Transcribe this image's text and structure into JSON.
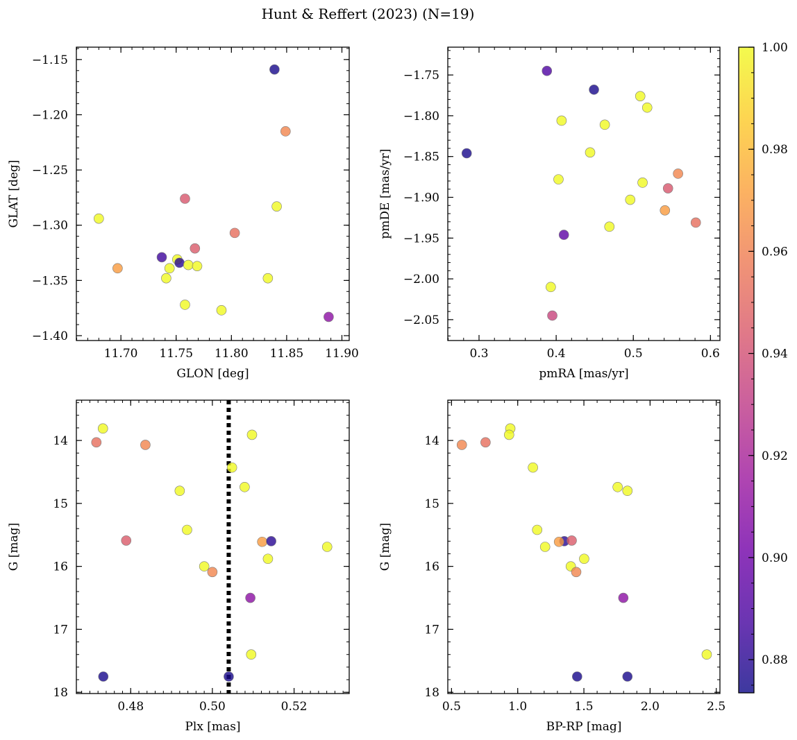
{
  "figure_title": "Hunt & Reffert (2023) (N=19)",
  "colorbar": {
    "range": [
      0.8735,
      1.0
    ],
    "ticks": [
      0.88,
      0.9,
      0.92,
      0.94,
      0.96,
      0.98,
      1.0
    ],
    "tick_labels": [
      "0.88",
      "0.90",
      "0.92",
      "0.94",
      "0.96",
      "0.98",
      "1.00"
    ],
    "colormap": "plasma",
    "colormap_stops": [
      "#0d0887",
      "#46039f",
      "#7201a8",
      "#9c179e",
      "#bd3786",
      "#d8576b",
      "#ed7953",
      "#fb9f3a",
      "#fdca26",
      "#f0f921"
    ]
  },
  "chart_data": [
    {
      "type": "scatter",
      "panel": "top-left",
      "xlabel": "GLON [deg]",
      "ylabel": "GLAT [deg]",
      "xlim": [
        11.6597,
        11.9066
      ],
      "ylim": [
        -1.4044,
        -1.1388
      ],
      "y_inverted": false,
      "xticks": [
        11.7,
        11.75,
        11.8,
        11.85,
        11.9
      ],
      "xtick_labels": [
        "11.70",
        "11.75",
        "11.80",
        "11.85",
        "11.90"
      ],
      "xminor": 0.01,
      "yticks": [
        -1.4,
        -1.35,
        -1.3,
        -1.25,
        -1.2,
        -1.15
      ],
      "ytick_labels": [
        "−1.40",
        "−1.35",
        "−1.30",
        "−1.25",
        "−1.20",
        "−1.15"
      ],
      "yminor": 0.01,
      "points": [
        {
          "x": 11.839,
          "y": -1.159,
          "c": 0.876
        },
        {
          "x": 11.849,
          "y": -1.215,
          "c": 0.962
        },
        {
          "x": 11.758,
          "y": -1.276,
          "c": 0.943
        },
        {
          "x": 11.841,
          "y": -1.283,
          "c": 1.0
        },
        {
          "x": 11.68,
          "y": -1.294,
          "c": 1.0
        },
        {
          "x": 11.803,
          "y": -1.307,
          "c": 0.953
        },
        {
          "x": 11.767,
          "y": -1.321,
          "c": 0.945
        },
        {
          "x": 11.737,
          "y": -1.329,
          "c": 0.885
        },
        {
          "x": 11.751,
          "y": -1.331,
          "c": 1.0
        },
        {
          "x": 11.753,
          "y": -1.334,
          "c": 0.88
        },
        {
          "x": 11.761,
          "y": -1.336,
          "c": 1.0
        },
        {
          "x": 11.769,
          "y": -1.337,
          "c": 1.0
        },
        {
          "x": 11.697,
          "y": -1.339,
          "c": 0.97
        },
        {
          "x": 11.744,
          "y": -1.339,
          "c": 1.0
        },
        {
          "x": 11.741,
          "y": -1.348,
          "c": 1.0
        },
        {
          "x": 11.833,
          "y": -1.348,
          "c": 1.0
        },
        {
          "x": 11.758,
          "y": -1.372,
          "c": 1.0
        },
        {
          "x": 11.791,
          "y": -1.377,
          "c": 1.0
        },
        {
          "x": 11.888,
          "y": -1.383,
          "c": 0.91
        }
      ]
    },
    {
      "type": "scatter",
      "panel": "top-right",
      "xlabel": "pmRA [mas/yr]",
      "ylabel": "pmDE [mas/yr]",
      "xlim": [
        0.2595,
        0.6123
      ],
      "ylim": [
        -2.0756,
        -1.7159
      ],
      "y_inverted": false,
      "xticks": [
        0.3,
        0.4,
        0.5,
        0.6
      ],
      "xtick_labels": [
        "0.3",
        "0.4",
        "0.5",
        "0.6"
      ],
      "xminor": 0.02,
      "yticks": [
        -2.05,
        -2.0,
        -1.95,
        -1.9,
        -1.85,
        -1.8,
        -1.75
      ],
      "ytick_labels": [
        "−2.05",
        "−2.00",
        "−1.95",
        "−1.90",
        "−1.85",
        "−1.80",
        "−1.75"
      ],
      "yminor": 0.01,
      "points": [
        {
          "x": 0.388,
          "y": -1.745,
          "c": 0.89
        },
        {
          "x": 0.449,
          "y": -1.768,
          "c": 0.876
        },
        {
          "x": 0.509,
          "y": -1.776,
          "c": 1.0
        },
        {
          "x": 0.518,
          "y": -1.79,
          "c": 1.0
        },
        {
          "x": 0.407,
          "y": -1.806,
          "c": 1.0
        },
        {
          "x": 0.463,
          "y": -1.811,
          "c": 1.0
        },
        {
          "x": 0.444,
          "y": -1.845,
          "c": 1.0
        },
        {
          "x": 0.284,
          "y": -1.846,
          "c": 0.876
        },
        {
          "x": 0.558,
          "y": -1.871,
          "c": 0.962
        },
        {
          "x": 0.403,
          "y": -1.878,
          "c": 1.0
        },
        {
          "x": 0.512,
          "y": -1.882,
          "c": 1.0
        },
        {
          "x": 0.545,
          "y": -1.889,
          "c": 0.943
        },
        {
          "x": 0.496,
          "y": -1.903,
          "c": 1.0
        },
        {
          "x": 0.541,
          "y": -1.916,
          "c": 0.97
        },
        {
          "x": 0.581,
          "y": -1.931,
          "c": 0.953
        },
        {
          "x": 0.469,
          "y": -1.936,
          "c": 1.0
        },
        {
          "x": 0.41,
          "y": -1.946,
          "c": 0.895
        },
        {
          "x": 0.393,
          "y": -2.01,
          "c": 1.0
        },
        {
          "x": 0.395,
          "y": -2.045,
          "c": 0.935
        }
      ]
    },
    {
      "type": "scatter",
      "panel": "bottom-left",
      "xlabel": "Plx [mas]",
      "ylabel": "G [mag]",
      "xlim": [
        0.4667,
        0.5335
      ],
      "ylim": [
        13.36,
        18.02
      ],
      "y_inverted": true,
      "xticks": [
        0.48,
        0.5,
        0.52
      ],
      "xtick_labels": [
        "0.48",
        "0.50",
        "0.52"
      ],
      "xminor": 0.002,
      "yticks": [
        14,
        15,
        16,
        17,
        18
      ],
      "ytick_labels": [
        "14",
        "15",
        "16",
        "17",
        "18"
      ],
      "yminor": 0.2,
      "vline": 0.504,
      "points": [
        {
          "x": 0.4732,
          "y": 13.81,
          "c": 1.0
        },
        {
          "x": 0.5097,
          "y": 13.91,
          "c": 1.0
        },
        {
          "x": 0.4716,
          "y": 14.03,
          "c": 0.953
        },
        {
          "x": 0.4836,
          "y": 14.07,
          "c": 0.962
        },
        {
          "x": 0.5048,
          "y": 14.43,
          "c": 1.0
        },
        {
          "x": 0.5079,
          "y": 14.74,
          "c": 1.0
        },
        {
          "x": 0.492,
          "y": 14.8,
          "c": 1.0
        },
        {
          "x": 0.4938,
          "y": 15.42,
          "c": 1.0
        },
        {
          "x": 0.4789,
          "y": 15.59,
          "c": 0.945
        },
        {
          "x": 0.5122,
          "y": 15.61,
          "c": 0.97
        },
        {
          "x": 0.5144,
          "y": 15.6,
          "c": 0.88
        },
        {
          "x": 0.5281,
          "y": 15.69,
          "c": 1.0
        },
        {
          "x": 0.5136,
          "y": 15.88,
          "c": 1.0
        },
        {
          "x": 0.498,
          "y": 16.0,
          "c": 1.0
        },
        {
          "x": 0.5,
          "y": 16.09,
          "c": 0.962
        },
        {
          "x": 0.5093,
          "y": 16.5,
          "c": 0.91
        },
        {
          "x": 0.5095,
          "y": 17.4,
          "c": 1.0
        },
        {
          "x": 0.4733,
          "y": 17.75,
          "c": 0.876
        },
        {
          "x": 0.504,
          "y": 17.75,
          "c": 0.876
        }
      ]
    },
    {
      "type": "scatter",
      "panel": "bottom-right",
      "xlabel": "BP-RP [mag]",
      "ylabel": "G [mag]",
      "xlim": [
        0.4718,
        2.5278
      ],
      "ylim": [
        13.36,
        18.02
      ],
      "y_inverted": true,
      "xticks": [
        0.5,
        1.0,
        1.5,
        2.0,
        2.5
      ],
      "xtick_labels": [
        "0.5",
        "1.0",
        "1.5",
        "2.0",
        "2.5"
      ],
      "xminor": 0.1,
      "yticks": [
        14,
        15,
        16,
        17,
        18
      ],
      "ytick_labels": [
        "14",
        "15",
        "16",
        "17",
        "18"
      ],
      "yminor": 0.2,
      "points": [
        {
          "x": 0.944,
          "y": 13.81,
          "c": 1.0
        },
        {
          "x": 0.935,
          "y": 13.91,
          "c": 1.0
        },
        {
          "x": 0.757,
          "y": 14.03,
          "c": 0.953
        },
        {
          "x": 0.578,
          "y": 14.07,
          "c": 0.962
        },
        {
          "x": 1.115,
          "y": 14.43,
          "c": 1.0
        },
        {
          "x": 1.755,
          "y": 14.74,
          "c": 1.0
        },
        {
          "x": 1.829,
          "y": 14.8,
          "c": 1.0
        },
        {
          "x": 1.147,
          "y": 15.42,
          "c": 1.0
        },
        {
          "x": 1.352,
          "y": 15.6,
          "c": 0.88
        },
        {
          "x": 1.408,
          "y": 15.59,
          "c": 0.945
        },
        {
          "x": 1.312,
          "y": 15.61,
          "c": 0.97
        },
        {
          "x": 1.207,
          "y": 15.69,
          "c": 1.0
        },
        {
          "x": 1.502,
          "y": 15.88,
          "c": 1.0
        },
        {
          "x": 1.401,
          "y": 16.0,
          "c": 1.0
        },
        {
          "x": 1.442,
          "y": 16.09,
          "c": 0.962
        },
        {
          "x": 1.798,
          "y": 16.5,
          "c": 0.91
        },
        {
          "x": 2.428,
          "y": 17.4,
          "c": 1.0
        },
        {
          "x": 1.449,
          "y": 17.75,
          "c": 0.876
        },
        {
          "x": 1.829,
          "y": 17.75,
          "c": 0.876
        }
      ]
    }
  ]
}
